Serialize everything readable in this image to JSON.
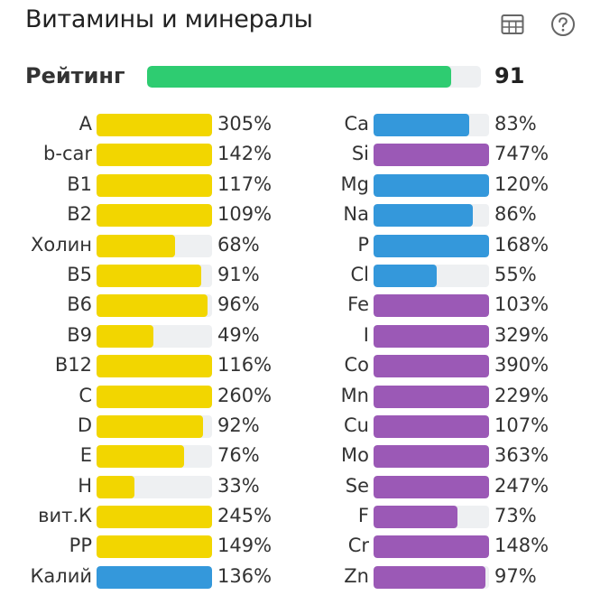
{
  "title": "Витамины и минералы",
  "icons": {
    "table": "table-icon",
    "help": "question-circle-icon"
  },
  "colors": {
    "vitamin": "#f2d600",
    "mineral_blue": "#3498db",
    "mineral_purple": "#9b59b6",
    "rating": "#2ecc71",
    "track": "#eef0f2"
  },
  "rating": {
    "label": "Рейтинг",
    "value": "91",
    "fill_percent": 91
  },
  "vitamins": [
    {
      "label": "A",
      "value": "305%",
      "percent": 305,
      "color": "#f2d600"
    },
    {
      "label": "b-car",
      "value": "142%",
      "percent": 142,
      "color": "#f2d600"
    },
    {
      "label": "B1",
      "value": "117%",
      "percent": 117,
      "color": "#f2d600"
    },
    {
      "label": "B2",
      "value": "109%",
      "percent": 109,
      "color": "#f2d600"
    },
    {
      "label": "Холин",
      "value": "68%",
      "percent": 68,
      "color": "#f2d600"
    },
    {
      "label": "B5",
      "value": "91%",
      "percent": 91,
      "color": "#f2d600"
    },
    {
      "label": "B6",
      "value": "96%",
      "percent": 96,
      "color": "#f2d600"
    },
    {
      "label": "B9",
      "value": "49%",
      "percent": 49,
      "color": "#f2d600"
    },
    {
      "label": "B12",
      "value": "116%",
      "percent": 116,
      "color": "#f2d600"
    },
    {
      "label": "C",
      "value": "260%",
      "percent": 260,
      "color": "#f2d600"
    },
    {
      "label": "D",
      "value": "92%",
      "percent": 92,
      "color": "#f2d600"
    },
    {
      "label": "E",
      "value": "76%",
      "percent": 76,
      "color": "#f2d600"
    },
    {
      "label": "H",
      "value": "33%",
      "percent": 33,
      "color": "#f2d600"
    },
    {
      "label": "вит.К",
      "value": "245%",
      "percent": 245,
      "color": "#f2d600"
    },
    {
      "label": "PP",
      "value": "149%",
      "percent": 149,
      "color": "#f2d600"
    },
    {
      "label": "Калий",
      "value": "136%",
      "percent": 136,
      "color": "#3498db"
    }
  ],
  "minerals": [
    {
      "label": "Ca",
      "value": "83%",
      "percent": 83,
      "color": "#3498db"
    },
    {
      "label": "Si",
      "value": "747%",
      "percent": 747,
      "color": "#9b59b6"
    },
    {
      "label": "Mg",
      "value": "120%",
      "percent": 120,
      "color": "#3498db"
    },
    {
      "label": "Na",
      "value": "86%",
      "percent": 86,
      "color": "#3498db"
    },
    {
      "label": "P",
      "value": "168%",
      "percent": 168,
      "color": "#3498db"
    },
    {
      "label": "Cl",
      "value": "55%",
      "percent": 55,
      "color": "#3498db"
    },
    {
      "label": "Fe",
      "value": "103%",
      "percent": 103,
      "color": "#9b59b6"
    },
    {
      "label": "I",
      "value": "329%",
      "percent": 329,
      "color": "#9b59b6"
    },
    {
      "label": "Co",
      "value": "390%",
      "percent": 390,
      "color": "#9b59b6"
    },
    {
      "label": "Mn",
      "value": "229%",
      "percent": 229,
      "color": "#9b59b6"
    },
    {
      "label": "Cu",
      "value": "107%",
      "percent": 107,
      "color": "#9b59b6"
    },
    {
      "label": "Mo",
      "value": "363%",
      "percent": 363,
      "color": "#9b59b6"
    },
    {
      "label": "Se",
      "value": "247%",
      "percent": 247,
      "color": "#9b59b6"
    },
    {
      "label": "F",
      "value": "73%",
      "percent": 73,
      "color": "#9b59b6"
    },
    {
      "label": "Cr",
      "value": "148%",
      "percent": 148,
      "color": "#9b59b6"
    },
    {
      "label": "Zn",
      "value": "97%",
      "percent": 97,
      "color": "#9b59b6"
    }
  ]
}
